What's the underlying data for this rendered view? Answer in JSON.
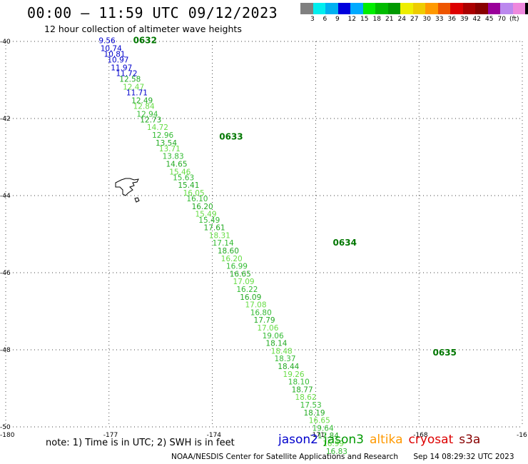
{
  "header": {
    "title": "00:00 – 11:59 UTC 09/12/2023",
    "subtitle": "12 hour collection of altimeter wave heights"
  },
  "color_legend": {
    "colors": [
      "#808080",
      "#00eeee",
      "#00b0f0",
      "#0000dd",
      "#00aaff",
      "#00ee00",
      "#00bb00",
      "#009900",
      "#eeee00",
      "#eecc00",
      "#ff9900",
      "#ee5500",
      "#dd0000",
      "#aa0000",
      "#880000",
      "#990099",
      "#bb88ee",
      "#ee88dd",
      "#000000"
    ],
    "labels": [
      "3",
      "6",
      "9",
      "12",
      "15",
      "18",
      "21",
      "24",
      "27",
      "30",
      "33",
      "36",
      "39",
      "42",
      "45",
      "70",
      "(ft)"
    ]
  },
  "chart_data": {
    "type": "scatter",
    "xlim": [
      -180,
      -165
    ],
    "ylim": [
      -50,
      -40
    ],
    "x_ticks": [
      "-180",
      "-177",
      "-174",
      "-171",
      "-168",
      "-16"
    ],
    "y_ticks": [
      "-40",
      "-42",
      "-44",
      "-46",
      "-48",
      "-50"
    ],
    "series_colors": {
      "jason2": "#0000cc",
      "jason3": "#009900",
      "altika": "#ff9900",
      "cryosat": "#dd0000",
      "s3a": "#880000"
    },
    "passes": [
      {
        "label": "0632",
        "lon": -176.3,
        "lat": -40.05
      },
      {
        "label": "0633",
        "lon": -173.8,
        "lat": -42.55
      },
      {
        "label": "0634",
        "lon": -170.5,
        "lat": -45.3
      },
      {
        "label": "0635",
        "lon": -167.6,
        "lat": -48.15
      }
    ],
    "points": [
      {
        "lon": -177.3,
        "lat": -40.05,
        "swh": "9.56",
        "sat": "jason2"
      },
      {
        "lon": -177.25,
        "lat": -40.25,
        "swh": "10.74",
        "sat": "jason2"
      },
      {
        "lon": -177.15,
        "lat": -40.4,
        "swh": "10.81",
        "sat": "jason2"
      },
      {
        "lon": -177.05,
        "lat": -40.55,
        "swh": "10.97",
        "sat": "jason2"
      },
      {
        "lon": -176.95,
        "lat": -40.75,
        "swh": "11.97",
        "sat": "jason2"
      },
      {
        "lon": -176.8,
        "lat": -40.9,
        "swh": "11.72",
        "sat": "jason2"
      },
      {
        "lon": -176.7,
        "lat": -41.05,
        "swh": "12.58",
        "sat": "jason3"
      },
      {
        "lon": -176.6,
        "lat": -41.25,
        "swh": "12.47",
        "sat": "jason3"
      },
      {
        "lon": -176.5,
        "lat": -41.4,
        "swh": "11.71",
        "sat": "jason2"
      },
      {
        "lon": -176.35,
        "lat": -41.6,
        "swh": "12.49",
        "sat": "jason3"
      },
      {
        "lon": -176.3,
        "lat": -41.75,
        "swh": "12.84",
        "sat": "jason3"
      },
      {
        "lon": -176.2,
        "lat": -41.95,
        "swh": "12.94",
        "sat": "jason3"
      },
      {
        "lon": -176.1,
        "lat": -42.1,
        "swh": "12.73",
        "sat": "jason3"
      },
      {
        "lon": -175.9,
        "lat": -42.3,
        "swh": "14.72",
        "sat": "jason3"
      },
      {
        "lon": -175.75,
        "lat": -42.5,
        "swh": "12.96",
        "sat": "jason3"
      },
      {
        "lon": -175.65,
        "lat": -42.7,
        "swh": "13.54",
        "sat": "jason3"
      },
      {
        "lon": -175.55,
        "lat": -42.85,
        "swh": "13.71",
        "sat": "jason3"
      },
      {
        "lon": -175.45,
        "lat": -43.05,
        "swh": "13.83",
        "sat": "jason3"
      },
      {
        "lon": -175.35,
        "lat": -43.25,
        "swh": "14.65",
        "sat": "jason3"
      },
      {
        "lon": -175.25,
        "lat": -43.45,
        "swh": "15.46",
        "sat": "jason3"
      },
      {
        "lon": -175.15,
        "lat": -43.6,
        "swh": "15.63",
        "sat": "jason3"
      },
      {
        "lon": -175.0,
        "lat": -43.8,
        "swh": "15.41",
        "sat": "jason3"
      },
      {
        "lon": -174.85,
        "lat": -44.0,
        "swh": "16.05",
        "sat": "jason3"
      },
      {
        "lon": -174.75,
        "lat": -44.15,
        "swh": "16.10",
        "sat": "jason3"
      },
      {
        "lon": -174.6,
        "lat": -44.35,
        "swh": "16.20",
        "sat": "jason3"
      },
      {
        "lon": -174.5,
        "lat": -44.55,
        "swh": "15.49",
        "sat": "jason3"
      },
      {
        "lon": -174.4,
        "lat": -44.7,
        "swh": "15.49",
        "sat": "jason3"
      },
      {
        "lon": -174.25,
        "lat": -44.9,
        "swh": "17.61",
        "sat": "jason3"
      },
      {
        "lon": -174.1,
        "lat": -45.1,
        "swh": "18.31",
        "sat": "jason3"
      },
      {
        "lon": -174.0,
        "lat": -45.3,
        "swh": "17.14",
        "sat": "jason3"
      },
      {
        "lon": -173.85,
        "lat": -45.5,
        "swh": "18.60",
        "sat": "jason3"
      },
      {
        "lon": -173.75,
        "lat": -45.7,
        "swh": "16.20",
        "sat": "jason3"
      },
      {
        "lon": -173.6,
        "lat": -45.9,
        "swh": "16.99",
        "sat": "jason3"
      },
      {
        "lon": -173.5,
        "lat": -46.1,
        "swh": "16.65",
        "sat": "jason3"
      },
      {
        "lon": -173.4,
        "lat": -46.3,
        "swh": "17.09",
        "sat": "jason3"
      },
      {
        "lon": -173.3,
        "lat": -46.5,
        "swh": "16.22",
        "sat": "jason3"
      },
      {
        "lon": -173.2,
        "lat": -46.7,
        "swh": "16.09",
        "sat": "jason3"
      },
      {
        "lon": -173.05,
        "lat": -46.9,
        "swh": "17.08",
        "sat": "jason3"
      },
      {
        "lon": -172.9,
        "lat": -47.1,
        "swh": "16.80",
        "sat": "jason3"
      },
      {
        "lon": -172.8,
        "lat": -47.3,
        "swh": "17.79",
        "sat": "jason3"
      },
      {
        "lon": -172.7,
        "lat": -47.5,
        "swh": "17.06",
        "sat": "jason3"
      },
      {
        "lon": -172.55,
        "lat": -47.7,
        "swh": "19.06",
        "sat": "jason3"
      },
      {
        "lon": -172.45,
        "lat": -47.9,
        "swh": "18.14",
        "sat": "jason3"
      },
      {
        "lon": -172.3,
        "lat": -48.1,
        "swh": "18.48",
        "sat": "jason3"
      },
      {
        "lon": -172.2,
        "lat": -48.3,
        "swh": "18.37",
        "sat": "jason3"
      },
      {
        "lon": -172.1,
        "lat": -48.5,
        "swh": "18.44",
        "sat": "jason3"
      },
      {
        "lon": -171.95,
        "lat": -48.7,
        "swh": "19.26",
        "sat": "jason3"
      },
      {
        "lon": -171.8,
        "lat": -48.9,
        "swh": "18.10",
        "sat": "jason3"
      },
      {
        "lon": -171.7,
        "lat": -49.1,
        "swh": "18.77",
        "sat": "jason3"
      },
      {
        "lon": -171.6,
        "lat": -49.3,
        "swh": "18.62",
        "sat": "jason3"
      },
      {
        "lon": -171.45,
        "lat": -49.5,
        "swh": "17.53",
        "sat": "jason3"
      },
      {
        "lon": -171.35,
        "lat": -49.7,
        "swh": "18.19",
        "sat": "jason3"
      },
      {
        "lon": -171.2,
        "lat": -49.9,
        "swh": "16.65",
        "sat": "jason3"
      },
      {
        "lon": -171.1,
        "lat": -50.1,
        "swh": "19.64",
        "sat": "jason3"
      },
      {
        "lon": -170.95,
        "lat": -50.3,
        "swh": "17.84",
        "sat": "jason3"
      },
      {
        "lon": -170.8,
        "lat": -50.5,
        "swh": "16.99",
        "sat": "jason3"
      },
      {
        "lon": -170.7,
        "lat": -50.7,
        "swh": "16.83",
        "sat": "jason3"
      }
    ]
  },
  "note": "note: 1) Time is in UTC; 2) SWH is in feet",
  "satellites": [
    {
      "name": "jason2",
      "color": "#0000cc"
    },
    {
      "name": "jason3",
      "color": "#009900"
    },
    {
      "name": "altika",
      "color": "#ff9900"
    },
    {
      "name": "cryosat",
      "color": "#dd0000"
    },
    {
      "name": "s3a",
      "color": "#880000"
    }
  ],
  "footer": {
    "credit": "NOAA/NESDIS Center for Satellite Applications and Research",
    "timestamp": "Sep 14 08:29:32 UTC 2023"
  }
}
